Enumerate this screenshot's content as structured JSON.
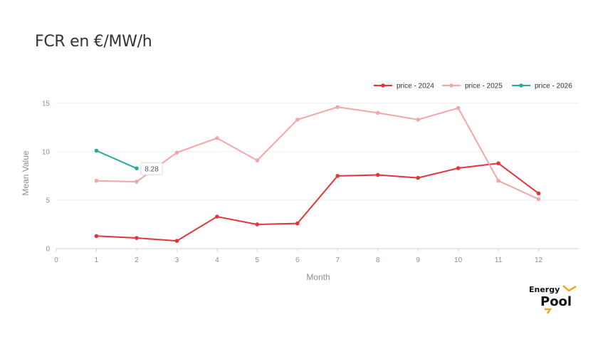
{
  "title": "FCR en €/MW/h",
  "tooltip": {
    "value": "8.28",
    "series_index": 2,
    "point_index": 1
  },
  "logo": {
    "line1": "Energy",
    "line2": "Pool",
    "accent_color": "#f5a623"
  },
  "chart_data": {
    "type": "line",
    "xlabel": "Month",
    "ylabel": "Mean Value",
    "xlim": [
      0,
      13
    ],
    "ylim": [
      0,
      15.5
    ],
    "xticks": [
      0,
      1,
      2,
      3,
      4,
      5,
      6,
      7,
      8,
      9,
      10,
      11,
      12
    ],
    "yticks": [
      0,
      5,
      10,
      15
    ],
    "grid": "horizontal",
    "legend_position": "top-right",
    "series": [
      {
        "name": "price - 2024",
        "color": "#e3343c",
        "x": [
          1,
          2,
          3,
          4,
          5,
          6,
          7,
          8,
          9,
          10,
          11,
          12
        ],
        "y": [
          1.3,
          1.1,
          0.8,
          3.3,
          2.5,
          2.6,
          7.5,
          7.6,
          7.3,
          8.3,
          8.8,
          5.7
        ]
      },
      {
        "name": "price - 2025",
        "color": "#f4a5a8",
        "x": [
          1,
          2,
          3,
          4,
          5,
          6,
          7,
          8,
          9,
          10,
          11,
          12
        ],
        "y": [
          7.0,
          6.9,
          9.9,
          11.4,
          9.1,
          13.3,
          14.6,
          14.0,
          13.3,
          14.5,
          7.0,
          5.1
        ]
      },
      {
        "name": "price - 2026",
        "color": "#2aa899",
        "x": [
          1,
          2
        ],
        "y": [
          10.1,
          8.28
        ]
      }
    ]
  }
}
